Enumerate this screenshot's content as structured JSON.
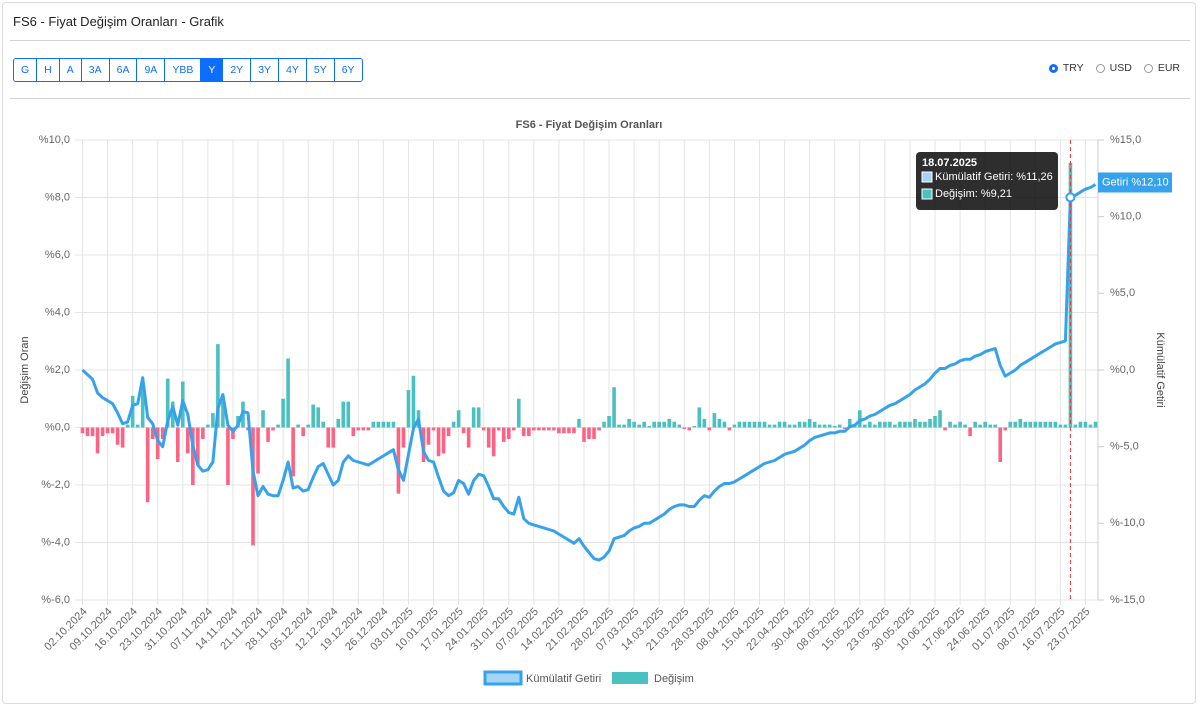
{
  "header": {
    "title": "FS6 - Fiyat Değişim Oranları - Grafik"
  },
  "period_buttons": [
    "G",
    "H",
    "A",
    "3A",
    "6A",
    "9A",
    "YBB",
    "Y",
    "2Y",
    "3Y",
    "4Y",
    "5Y",
    "6Y"
  ],
  "active_period": "Y",
  "currencies": [
    "TRY",
    "USD",
    "EUR"
  ],
  "selected_currency": "TRY",
  "chart_data": {
    "type": "combo",
    "title": "FS6 - Fiyat Değişim Oranları",
    "y_label": "Değişim Oran",
    "y2_label": "Kümülatif Getiri",
    "categories": [
      "02.10.2024",
      null,
      null,
      null,
      null,
      "09.10.2024",
      null,
      null,
      null,
      null,
      "16.10.2024",
      null,
      null,
      null,
      null,
      "23.10.2024",
      null,
      null,
      null,
      null,
      "31.10.2024",
      null,
      null,
      null,
      null,
      "07.11.2024",
      null,
      null,
      null,
      null,
      "14.11.2024",
      null,
      null,
      null,
      null,
      "21.11.2024",
      null,
      null,
      null,
      null,
      "28.11.2024",
      null,
      null,
      null,
      null,
      "05.12.2024",
      null,
      null,
      null,
      null,
      "12.12.2024",
      null,
      null,
      null,
      null,
      "19.12.2024",
      null,
      null,
      null,
      null,
      "26.12.2024",
      null,
      null,
      null,
      null,
      "03.01.2025",
      null,
      null,
      null,
      null,
      "10.01.2025",
      null,
      null,
      null,
      null,
      "17.01.2025",
      null,
      null,
      null,
      null,
      "24.01.2025",
      null,
      null,
      null,
      null,
      "31.01.2025",
      null,
      null,
      null,
      null,
      "07.02.2025",
      null,
      null,
      null,
      null,
      "14.02.2025",
      null,
      null,
      null,
      null,
      "21.02.2025",
      null,
      null,
      null,
      null,
      "28.02.2025",
      null,
      null,
      null,
      null,
      "07.03.2025",
      null,
      null,
      null,
      null,
      "14.03.2025",
      null,
      null,
      null,
      null,
      "21.03.2025",
      null,
      null,
      null,
      null,
      "28.03.2025",
      null,
      null,
      null,
      null,
      "08.04.2025",
      null,
      null,
      null,
      null,
      "15.04.2025",
      null,
      null,
      null,
      null,
      "22.04.2025",
      null,
      null,
      null,
      null,
      "30.04.2025",
      null,
      null,
      null,
      null,
      "08.05.2025",
      null,
      null,
      null,
      null,
      "15.05.2025",
      null,
      null,
      null,
      null,
      "23.05.2025",
      null,
      null,
      null,
      null,
      "30.05.2025",
      null,
      null,
      null,
      null,
      "10.06.2025",
      null,
      null,
      null,
      null,
      "17.06.2025",
      null,
      null,
      null,
      null,
      "24.06.2025",
      null,
      null,
      null,
      null,
      "01.07.2025",
      null,
      null,
      null,
      null,
      "08.07.2025",
      null,
      null,
      null,
      null,
      "16.07.2025",
      null,
      null,
      null,
      null,
      "23.07.2025",
      null,
      null
    ],
    "series": [
      {
        "name": "Kümülatif Getiri",
        "type": "line",
        "axis": "y2",
        "color": "#36a2eb",
        "values": [
          0.0,
          -0.3,
          -0.6,
          -1.5,
          -1.8,
          -2.0,
          -2.2,
          -2.8,
          -3.5,
          -3.4,
          -2.3,
          -2.2,
          -0.5,
          -3.1,
          -3.5,
          -4.6,
          -5.0,
          -3.3,
          -2.4,
          -3.6,
          -2.0,
          -2.9,
          -4.9,
          -6.2,
          -6.6,
          -6.5,
          -6.0,
          -2.5,
          -1.6,
          -3.6,
          -4.0,
          -3.6,
          -2.7,
          -2.8,
          -6.6,
          -8.2,
          -7.6,
          -8.1,
          -8.2,
          -8.2,
          -7.2,
          -6.0,
          -7.7,
          -7.6,
          -7.9,
          -7.8,
          -7.0,
          -6.3,
          -6.1,
          -6.8,
          -7.5,
          -7.2,
          -6.0,
          -5.6,
          -5.9,
          -6.0,
          -6.1,
          -6.2,
          -6.0,
          -5.8,
          -5.6,
          -5.4,
          -5.2,
          -6.5,
          -7.2,
          -5.5,
          -3.8,
          -3.2,
          -5.3,
          -5.9,
          -6.0,
          -7.0,
          -7.9,
          -8.2,
          -8.0,
          -7.2,
          -7.4,
          -8.1,
          -7.2,
          -6.8,
          -6.9,
          -7.6,
          -8.4,
          -8.4,
          -8.9,
          -9.3,
          -9.4,
          -8.3,
          -9.7,
          -10.0,
          -10.1,
          -10.2,
          -10.3,
          -10.4,
          -10.5,
          -10.7,
          -10.9,
          -11.1,
          -11.3,
          -11.0,
          -11.5,
          -11.9,
          -12.3,
          -12.4,
          -12.2,
          -11.8,
          -11.0,
          -10.9,
          -10.8,
          -10.5,
          -10.3,
          -10.2,
          -10.0,
          -10.0,
          -9.8,
          -9.6,
          -9.4,
          -9.1,
          -8.9,
          -8.8,
          -8.8,
          -8.9,
          -8.9,
          -8.5,
          -8.2,
          -8.3,
          -7.9,
          -7.6,
          -7.4,
          -7.4,
          -7.3,
          -7.1,
          -6.9,
          -6.7,
          -6.5,
          -6.3,
          -6.1,
          -6.0,
          -5.9,
          -5.7,
          -5.5,
          -5.4,
          -5.3,
          -5.1,
          -4.9,
          -4.6,
          -4.4,
          -4.3,
          -4.2,
          -4.1,
          -4.1,
          -4.0,
          -4.0,
          -3.7,
          -3.6,
          -3.3,
          -3.2,
          -3.0,
          -2.9,
          -2.7,
          -2.5,
          -2.3,
          -2.2,
          -2.0,
          -1.8,
          -1.6,
          -1.3,
          -1.1,
          -0.9,
          -0.6,
          -0.2,
          0.1,
          0.1,
          0.3,
          0.4,
          0.6,
          0.7,
          0.7,
          0.9,
          1.0,
          1.2,
          1.3,
          1.4,
          0.3,
          -0.4,
          -0.2,
          0.0,
          0.3,
          0.5,
          0.7,
          0.9,
          1.1,
          1.3,
          1.5,
          1.7,
          1.8,
          1.9,
          11.26,
          11.4,
          11.6,
          11.8,
          11.9,
          12.1
        ]
      },
      {
        "name": "Değişim",
        "type": "bar",
        "color": "#4bc0c0",
        "negative_color": "#ff6384",
        "values": [
          -0.2,
          -0.3,
          -0.3,
          -0.9,
          -0.3,
          -0.2,
          -0.2,
          -0.6,
          -0.7,
          0.1,
          1.1,
          0.1,
          1.7,
          -2.6,
          -0.4,
          -1.1,
          -0.4,
          1.7,
          0.9,
          -1.2,
          1.6,
          -0.9,
          -2.0,
          -1.3,
          -0.4,
          0.1,
          0.5,
          2.9,
          0.9,
          -2.0,
          -0.4,
          0.4,
          0.9,
          -0.1,
          -4.1,
          -1.6,
          0.6,
          -0.5,
          -0.1,
          0.1,
          1.0,
          2.4,
          -1.7,
          0.1,
          -0.3,
          0.1,
          0.8,
          0.7,
          0.2,
          -0.7,
          -0.7,
          0.3,
          0.9,
          0.9,
          -0.3,
          -0.1,
          -0.1,
          -0.1,
          0.2,
          0.2,
          0.2,
          0.2,
          0.2,
          -2.3,
          -0.7,
          1.3,
          1.8,
          0.6,
          -1.2,
          -0.6,
          -0.1,
          -1.0,
          -0.9,
          -0.3,
          0.2,
          0.6,
          -0.2,
          -0.7,
          0.7,
          0.7,
          -0.1,
          -0.7,
          -1.0,
          -0.1,
          -0.5,
          -0.4,
          -0.1,
          1.0,
          -0.3,
          -0.3,
          -0.1,
          -0.1,
          -0.1,
          -0.1,
          -0.1,
          -0.2,
          -0.2,
          -0.2,
          -0.2,
          0.3,
          -0.5,
          -0.4,
          -0.4,
          -0.1,
          0.2,
          0.4,
          1.4,
          0.1,
          0.1,
          0.3,
          0.2,
          0.1,
          0.2,
          0.05,
          0.2,
          0.2,
          0.2,
          0.3,
          0.2,
          0.1,
          -0.05,
          -0.1,
          0.05,
          0.7,
          0.3,
          -0.1,
          0.5,
          0.3,
          0.2,
          -0.1,
          0.1,
          0.2,
          0.2,
          0.2,
          0.2,
          0.2,
          0.2,
          0.1,
          0.1,
          0.2,
          0.2,
          0.1,
          0.1,
          0.2,
          0.2,
          0.3,
          0.2,
          0.1,
          0.1,
          0.1,
          0.05,
          0.1,
          -0.05,
          0.3,
          0.1,
          0.6,
          0.1,
          0.2,
          0.1,
          0.2,
          0.2,
          0.2,
          0.1,
          0.2,
          0.2,
          0.2,
          0.3,
          0.2,
          0.2,
          0.3,
          0.4,
          0.6,
          -0.1,
          0.2,
          0.1,
          0.2,
          0.1,
          -0.3,
          0.2,
          0.1,
          0.2,
          0.1,
          0.1,
          -1.2,
          -0.1,
          0.2,
          0.2,
          0.3,
          0.2,
          0.2,
          0.2,
          0.2,
          0.2,
          0.2,
          0.2,
          0.1,
          0.1,
          9.21,
          0.1,
          0.2,
          0.2,
          0.1,
          0.2
        ]
      }
    ],
    "ylim": [
      -6,
      10
    ],
    "yticks": [
      {
        "value": 10,
        "label": "%10,0"
      },
      {
        "value": 8,
        "label": "%8,0"
      },
      {
        "value": 6,
        "label": "%6,0"
      },
      {
        "value": 4,
        "label": "%4,0"
      },
      {
        "value": 2,
        "label": "%2,0"
      },
      {
        "value": 0,
        "label": "%0,0"
      },
      {
        "value": -2,
        "label": "%-2,0"
      },
      {
        "value": -4,
        "label": "%-4,0"
      },
      {
        "value": -6,
        "label": "%-6,0"
      }
    ],
    "y2lim": [
      -15,
      15
    ],
    "y2ticks": [
      {
        "value": 15,
        "label": "%15,0"
      },
      {
        "value": 10,
        "label": "%10,0"
      },
      {
        "value": 5,
        "label": "%5,0"
      },
      {
        "value": 0,
        "label": "%0,0"
      },
      {
        "value": -5,
        "label": "%-5,0"
      },
      {
        "value": -10,
        "label": "%-10,0"
      },
      {
        "value": -15,
        "label": "%-15,0"
      }
    ],
    "grid": true,
    "tooltip": {
      "title": "18.07.2025",
      "lines": [
        "Kümülatif Getiri: %11,26",
        "Değişim: %9,21"
      ]
    },
    "end_label": "Getiri %12,10"
  }
}
